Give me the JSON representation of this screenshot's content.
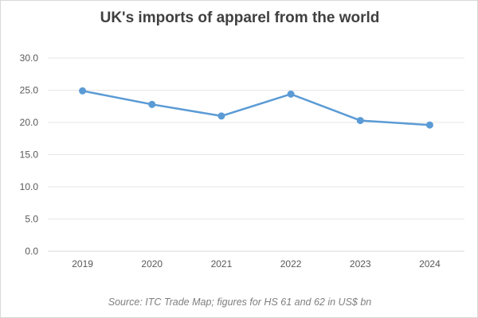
{
  "chart_data": {
    "type": "line",
    "title": "UK's imports of apparel from the world",
    "xlabel": "",
    "ylabel": "",
    "categories": [
      "2019",
      "2020",
      "2021",
      "2022",
      "2023",
      "2024"
    ],
    "series": [
      {
        "values": [
          24.9,
          22.8,
          21.0,
          24.4,
          20.3,
          19.6
        ],
        "color": "#5b9bd5"
      }
    ],
    "ylim": [
      0,
      30
    ],
    "yticks": [
      "0.0",
      "5.0",
      "10.0",
      "15.0",
      "20.0",
      "25.0",
      "30.0"
    ],
    "grid": true,
    "legend": "none",
    "source_note": "Source: ITC Trade  Map; figures for HS 61 and 62 in US$ bn"
  }
}
